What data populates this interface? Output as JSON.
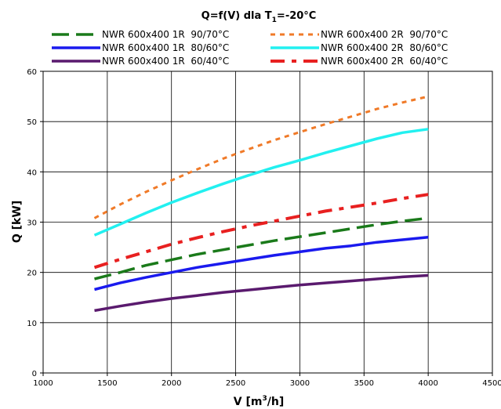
{
  "chart_data": {
    "type": "line",
    "title_main": "Q=f(V) dla T",
    "title_sub": "1",
    "title_rest": "=-20°C",
    "xlabel_main": "V [m",
    "xlabel_sup": "3",
    "xlabel_rest": "/h]",
    "ylabel": "Q [kW]",
    "xlim": [
      1000,
      4500
    ],
    "ylim": [
      0,
      60
    ],
    "xticks": [
      1000,
      1500,
      2000,
      2500,
      3000,
      3500,
      4000,
      4500
    ],
    "yticks": [
      0,
      10,
      20,
      30,
      40,
      50,
      60
    ],
    "grid": true,
    "legend_position": "top",
    "series": [
      {
        "name": "NWR 600x400 1R  90/70°C",
        "color": "#1a7a1a",
        "dash": "dashed-long",
        "x": [
          1400,
          1600,
          1800,
          2000,
          2200,
          2400,
          2600,
          2800,
          3000,
          3200,
          3400,
          3600,
          3800,
          4000
        ],
        "y": [
          18.7,
          20.0,
          21.4,
          22.5,
          23.6,
          24.5,
          25.4,
          26.3,
          27.1,
          27.9,
          28.7,
          29.5,
          30.2,
          30.8
        ]
      },
      {
        "name": "NWR 600x400 1R  80/60°C",
        "color": "#1a1aee",
        "dash": "solid",
        "x": [
          1400,
          1600,
          1800,
          2000,
          2200,
          2400,
          2600,
          2800,
          3000,
          3200,
          3400,
          3600,
          3800,
          4000
        ],
        "y": [
          16.6,
          17.9,
          19.0,
          20.0,
          21.0,
          21.8,
          22.6,
          23.4,
          24.1,
          24.8,
          25.3,
          26.0,
          26.5,
          27.0
        ]
      },
      {
        "name": "NWR 600x400 1R  60/40°C",
        "color": "#5a1a6e",
        "dash": "solid",
        "x": [
          1400,
          1600,
          1800,
          2000,
          2200,
          2400,
          2600,
          2800,
          3000,
          3200,
          3400,
          3600,
          3800,
          4000
        ],
        "y": [
          12.4,
          13.3,
          14.1,
          14.8,
          15.4,
          16.0,
          16.5,
          17.0,
          17.5,
          17.9,
          18.3,
          18.7,
          19.1,
          19.4
        ]
      },
      {
        "name": "NWR 600x400 2R  90/70°C",
        "color": "#f07a28",
        "dash": "dotted",
        "x": [
          1400,
          1600,
          1800,
          2000,
          2200,
          2400,
          2600,
          2800,
          3000,
          3200,
          3400,
          3600,
          3800,
          4000
        ],
        "y": [
          30.8,
          33.5,
          36.0,
          38.3,
          40.5,
          42.6,
          44.5,
          46.3,
          47.9,
          49.5,
          51.0,
          52.5,
          53.8,
          55.0
        ]
      },
      {
        "name": "NWR 600x400 2R  80/60°C",
        "color": "#22f0f0",
        "dash": "solid",
        "x": [
          1400,
          1600,
          1800,
          2000,
          2200,
          2400,
          2600,
          2800,
          3000,
          3200,
          3400,
          3600,
          3800,
          4000
        ],
        "y": [
          27.4,
          29.6,
          31.8,
          33.9,
          35.8,
          37.6,
          39.3,
          40.9,
          42.3,
          43.8,
          45.2,
          46.6,
          47.8,
          48.5
        ]
      },
      {
        "name": "NWR 600x400 2R  60/40°C",
        "color": "#e82020",
        "dash": "dash-dot",
        "x": [
          1400,
          1600,
          1800,
          2000,
          2200,
          2400,
          2600,
          2800,
          3000,
          3200,
          3400,
          3600,
          3800,
          4000
        ],
        "y": [
          21.0,
          22.6,
          24.1,
          25.6,
          26.9,
          28.1,
          29.2,
          30.2,
          31.2,
          32.2,
          33.0,
          33.8,
          34.7,
          35.5
        ]
      }
    ]
  }
}
